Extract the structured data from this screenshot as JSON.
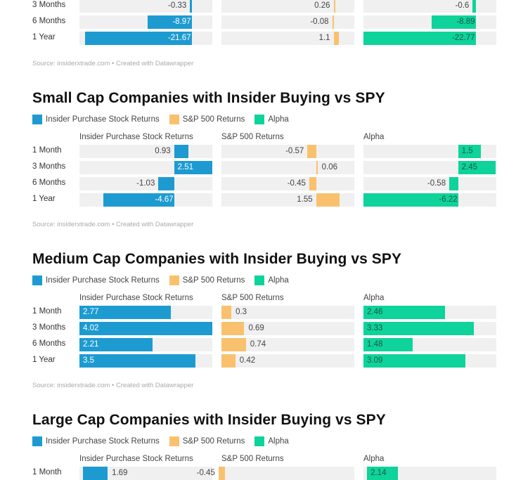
{
  "colors": {
    "insider": "#1d9bd1",
    "sp500": "#f9c16d",
    "alpha": "#0ed39b",
    "cell_bg": "#f0f0f0"
  },
  "source_text": "Source: insiderxtrade.com • Created with Datawrapper",
  "legend_labels": [
    "Insider Purchase Stock Returns",
    "S&P 500 Returns",
    "Alpha"
  ],
  "chart_data": [
    {
      "type": "bar",
      "title": "",
      "note": "Top chart is cut off; only last three rows visible",
      "categories": [
        "3 Months",
        "6 Months",
        "1 Year"
      ],
      "series": [
        {
          "name": "Insider Purchase Stock Returns",
          "values": [
            -0.33,
            -8.97,
            -21.67
          ]
        },
        {
          "name": "S&P 500 Returns",
          "values": [
            0.26,
            -0.08,
            1.1
          ]
        },
        {
          "name": "Alpha",
          "values": [
            -0.6,
            -8.89,
            -22.77
          ]
        }
      ],
      "xlim": [
        -22.77,
        4.2
      ],
      "source": "Source: insiderxtrade.com • Created with Datawrapper"
    },
    {
      "type": "bar",
      "title": "Small Cap Companies with Insider Buying vs SPY",
      "legend": [
        "Insider Purchase Stock Returns",
        "S&P 500 Returns",
        "Alpha"
      ],
      "column_headers": [
        "Insider Purchase Stock Returns",
        "S&P 500 Returns",
        "Alpha"
      ],
      "categories": [
        "1 Month",
        "3 Months",
        "6 Months",
        "1 Year"
      ],
      "series": [
        {
          "name": "Insider Purchase Stock Returns",
          "values": [
            0.93,
            2.51,
            -1.03,
            -4.67
          ]
        },
        {
          "name": "S&P 500 Returns",
          "values": [
            -0.57,
            0.06,
            -0.45,
            1.55
          ]
        },
        {
          "name": "Alpha",
          "values": [
            1.5,
            2.45,
            -0.58,
            -6.22
          ]
        }
      ],
      "xlim": [
        -6.22,
        2.51
      ],
      "source": "Source: insiderxtrade.com • Created with Datawrapper"
    },
    {
      "type": "bar",
      "title": "Medium Cap Companies with Insider Buying vs SPY",
      "legend": [
        "Insider Purchase Stock Returns",
        "S&P 500 Returns",
        "Alpha"
      ],
      "column_headers": [
        "Insider Purchase Stock Returns",
        "S&P 500 Returns",
        "Alpha"
      ],
      "categories": [
        "1 Month",
        "3 Months",
        "6 Months",
        "1 Year"
      ],
      "series": [
        {
          "name": "Insider Purchase Stock Returns",
          "values": [
            2.77,
            4.02,
            2.21,
            3.5
          ]
        },
        {
          "name": "S&P 500 Returns",
          "values": [
            0.3,
            0.69,
            0.74,
            0.42
          ]
        },
        {
          "name": "Alpha",
          "values": [
            2.46,
            3.33,
            1.48,
            3.09
          ]
        }
      ],
      "xlim": [
        0,
        4.02
      ],
      "source": "Source: insiderxtrade.com • Created with Datawrapper"
    },
    {
      "type": "bar",
      "title": "Large Cap Companies with Insider Buying vs SPY",
      "legend": [
        "Insider Purchase Stock Returns",
        "S&P 500 Returns",
        "Alpha"
      ],
      "column_headers": [
        "Insider Purchase Stock Returns",
        "S&P 500 Returns",
        "Alpha"
      ],
      "categories": [
        "1 Month"
      ],
      "series": [
        {
          "name": "Insider Purchase Stock Returns",
          "values": [
            1.69
          ]
        },
        {
          "name": "S&P 500 Returns",
          "values": [
            -0.45
          ]
        },
        {
          "name": "Alpha",
          "values": [
            2.14
          ]
        }
      ],
      "xlim": [
        -0.25,
        8.9
      ]
    }
  ]
}
